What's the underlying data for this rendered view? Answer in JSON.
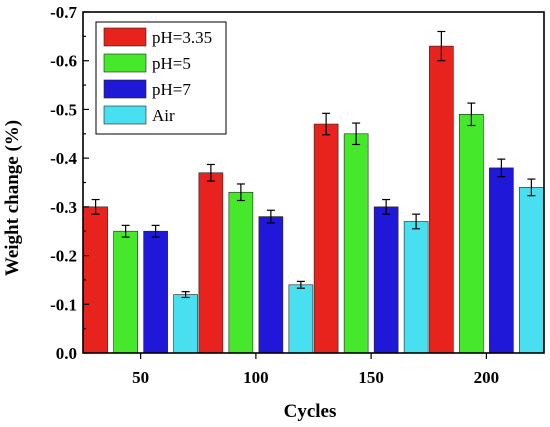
{
  "chart_data": {
    "type": "bar",
    "title": "",
    "xlabel": "Cycles",
    "ylabel": "Weight change (%)",
    "categories": [
      "50",
      "100",
      "150",
      "200"
    ],
    "ylim": [
      0,
      -0.7
    ],
    "y_ticks": [
      "0.0",
      "-0.1",
      "-0.2",
      "-0.3",
      "-0.4",
      "-0.5",
      "-0.6",
      "-0.7"
    ],
    "y_tick_values": [
      0,
      -0.1,
      -0.2,
      -0.3,
      -0.4,
      -0.5,
      -0.6,
      -0.7
    ],
    "grid": false,
    "legend_position": "top-left",
    "series": [
      {
        "name": "pH=3.35",
        "color": "#e8231d",
        "values": [
          -0.3,
          -0.37,
          -0.47,
          -0.63
        ],
        "errors": [
          0.015,
          0.017,
          0.022,
          0.03
        ]
      },
      {
        "name": "pH=5",
        "color": "#46e82c",
        "values": [
          -0.25,
          -0.33,
          -0.45,
          -0.49
        ],
        "errors": [
          0.012,
          0.017,
          0.022,
          0.023
        ]
      },
      {
        "name": "pH=7",
        "color": "#1f18d8",
        "values": [
          -0.25,
          -0.28,
          -0.3,
          -0.38
        ],
        "errors": [
          0.012,
          0.013,
          0.015,
          0.018
        ]
      },
      {
        "name": "Air",
        "color": "#48e0f0",
        "values": [
          -0.12,
          -0.14,
          -0.27,
          -0.34
        ],
        "errors": [
          0.006,
          0.007,
          0.015,
          0.017
        ]
      }
    ]
  }
}
